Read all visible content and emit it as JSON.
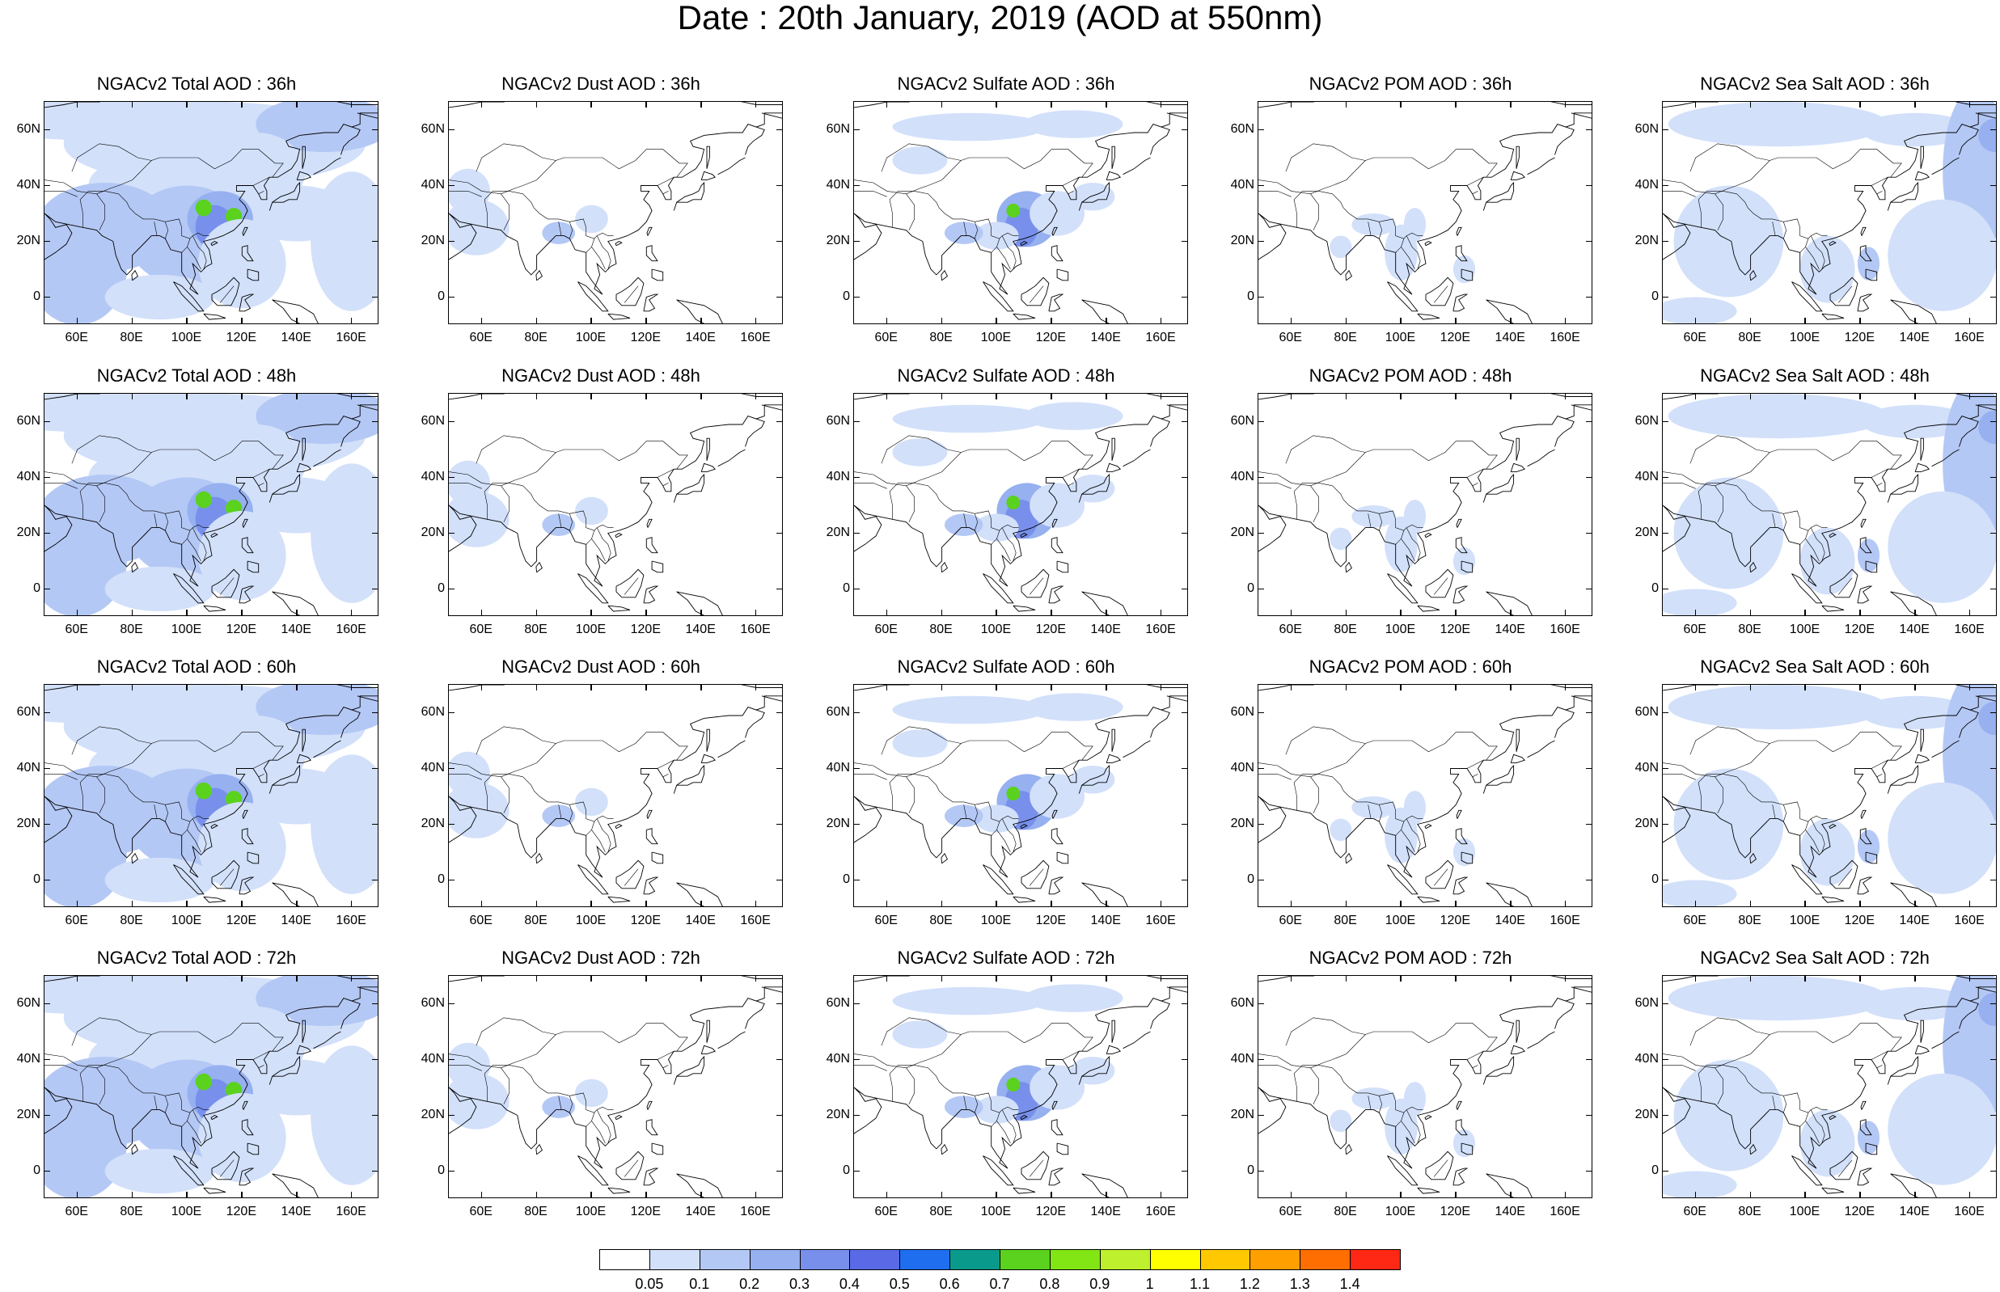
{
  "title": "Date : 20th January, 2019 (AOD at 550nm)",
  "lat_labels": [
    "60N",
    "40N",
    "20N",
    "0"
  ],
  "lon_labels": [
    "60E",
    "80E",
    "100E",
    "120E",
    "140E",
    "160E"
  ],
  "panels": [
    {
      "title": "NGACv2 Total AOD : 36h",
      "species": "total"
    },
    {
      "title": "NGACv2 Dust AOD : 36h",
      "species": "dust"
    },
    {
      "title": "NGACv2 Sulfate AOD : 36h",
      "species": "sulfate"
    },
    {
      "title": "NGACv2 POM AOD : 36h",
      "species": "pom"
    },
    {
      "title": "NGACv2 Sea Salt AOD : 36h",
      "species": "seasalt"
    },
    {
      "title": "NGACv2 Total AOD : 48h",
      "species": "total"
    },
    {
      "title": "NGACv2 Dust AOD : 48h",
      "species": "dust"
    },
    {
      "title": "NGACv2 Sulfate AOD : 48h",
      "species": "sulfate"
    },
    {
      "title": "NGACv2 POM AOD : 48h",
      "species": "pom"
    },
    {
      "title": "NGACv2 Sea Salt AOD : 48h",
      "species": "seasalt"
    },
    {
      "title": "NGACv2 Total AOD : 60h",
      "species": "total"
    },
    {
      "title": "NGACv2 Dust AOD : 60h",
      "species": "dust"
    },
    {
      "title": "NGACv2 Sulfate AOD : 60h",
      "species": "sulfate"
    },
    {
      "title": "NGACv2 POM AOD : 60h",
      "species": "pom"
    },
    {
      "title": "NGACv2 Sea Salt AOD : 60h",
      "species": "seasalt"
    },
    {
      "title": "NGACv2 Total AOD : 72h",
      "species": "total"
    },
    {
      "title": "NGACv2 Dust AOD : 72h",
      "species": "dust"
    },
    {
      "title": "NGACv2 Sulfate AOD : 72h",
      "species": "sulfate"
    },
    {
      "title": "NGACv2 POM AOD : 72h",
      "species": "pom"
    },
    {
      "title": "NGACv2 Sea Salt  AOD : 72h",
      "species": "seasalt"
    }
  ],
  "colorbar": {
    "labels": [
      "0.05",
      "0.1",
      "0.2",
      "0.3",
      "0.4",
      "0.5",
      "0.6",
      "0.7",
      "0.8",
      "0.9",
      "1",
      "1.1",
      "1.2",
      "1.3",
      "1.4"
    ],
    "colors": [
      "#ffffff",
      "#d2e0fa",
      "#b4c8f5",
      "#96b0f0",
      "#7890ec",
      "#5a6ae6",
      "#1f6ef0",
      "#0a9a8c",
      "#5ad21e",
      "#82e614",
      "#bef02d",
      "#ffff00",
      "#ffc800",
      "#ffa000",
      "#ff6e00",
      "#ff2814"
    ]
  }
}
